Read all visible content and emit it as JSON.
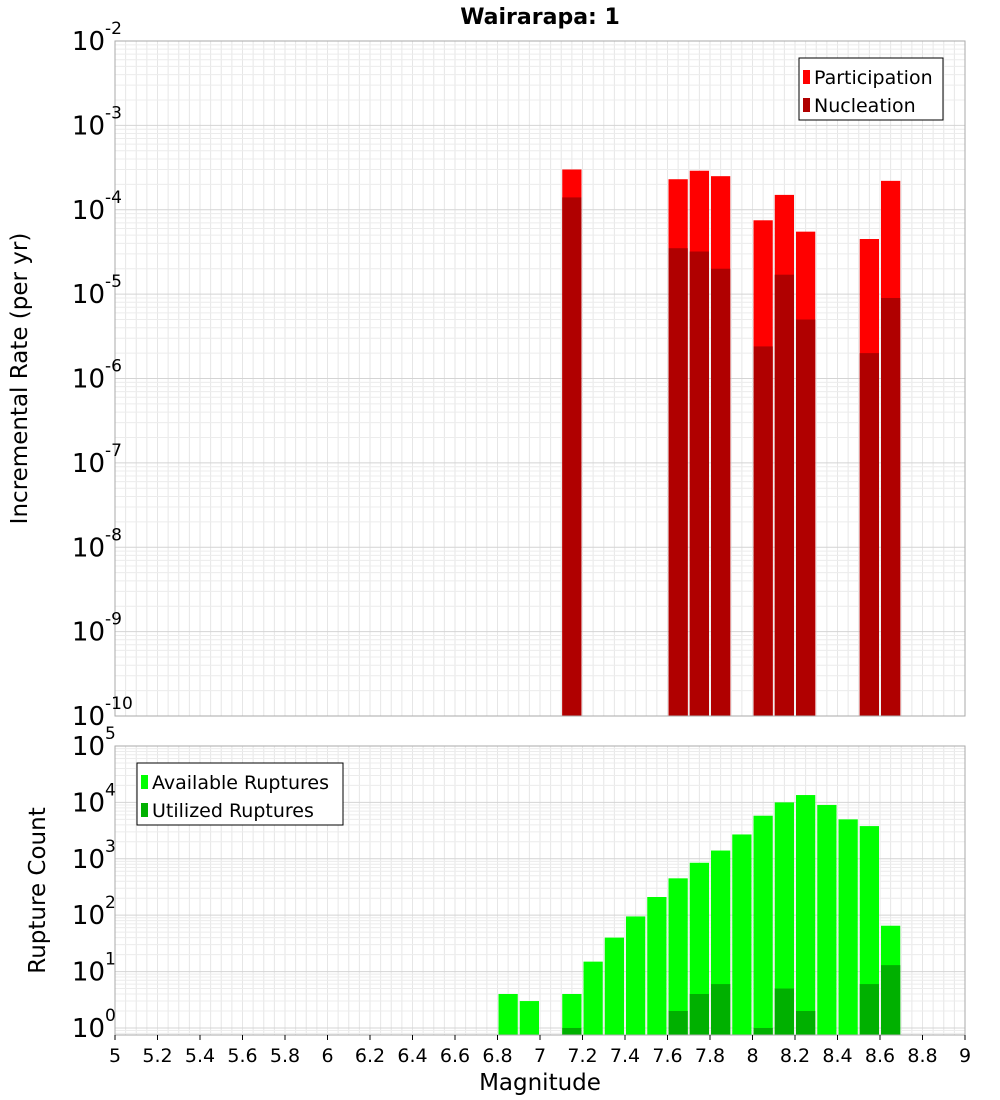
{
  "chart_data": [
    {
      "type": "bar",
      "title": "Wairarapa: 1",
      "xlabel": "",
      "ylabel": "Incremental Rate (per yr)",
      "y_scale": "log",
      "ylim": [
        1e-10,
        0.01
      ],
      "xlim": [
        5,
        9
      ],
      "bin_width": 0.1,
      "grid": true,
      "legend_position": "top-right",
      "legend": [
        "Participation",
        "Nucleation"
      ],
      "series": [
        {
          "name": "Participation",
          "color": "#ff0000",
          "x": [
            7.15,
            7.65,
            7.75,
            7.85,
            8.05,
            8.15,
            8.25,
            8.55,
            8.65
          ],
          "values": [
            0.0003,
            0.00023,
            0.00029,
            0.00025,
            7.5e-05,
            0.00015,
            5.5e-05,
            4.5e-05,
            0.00022
          ]
        },
        {
          "name": "Nucleation",
          "color": "#b00000",
          "x": [
            7.15,
            7.65,
            7.75,
            7.85,
            8.05,
            8.15,
            8.25,
            8.55,
            8.65
          ],
          "values": [
            0.00014,
            3.5e-05,
            3.2e-05,
            2e-05,
            2.4e-06,
            1.7e-05,
            5e-06,
            2e-06,
            9e-06
          ]
        }
      ]
    },
    {
      "type": "bar",
      "title": "",
      "xlabel": "Magnitude",
      "ylabel": "Rupture Count",
      "y_scale": "log",
      "ylim": [
        0.75,
        100000
      ],
      "xlim": [
        5,
        9
      ],
      "bin_width": 0.1,
      "grid": true,
      "legend_position": "top-left",
      "legend": [
        "Available Ruptures",
        "Utilized Ruptures"
      ],
      "x_ticks": [
        "5",
        "5.2",
        "5.4",
        "5.6",
        "5.8",
        "6",
        "6.2",
        "6.4",
        "6.6",
        "6.8",
        "7",
        "7.2",
        "7.4",
        "7.6",
        "7.8",
        "8",
        "8.2",
        "8.4",
        "8.6",
        "8.8",
        "9"
      ],
      "series": [
        {
          "name": "Available Ruptures",
          "color": "#00ff00",
          "x": [
            6.85,
            6.95,
            7.15,
            7.25,
            7.35,
            7.45,
            7.55,
            7.65,
            7.75,
            7.85,
            7.95,
            8.05,
            8.15,
            8.25,
            8.35,
            8.45,
            8.55,
            8.65
          ],
          "values": [
            4,
            3,
            4,
            15,
            40,
            95,
            210,
            450,
            850,
            1400,
            2700,
            5800,
            10000,
            13500,
            9000,
            5000,
            3800,
            65
          ]
        },
        {
          "name": "Utilized Ruptures",
          "color": "#00b000",
          "x": [
            7.15,
            7.65,
            7.75,
            7.85,
            8.05,
            8.15,
            8.25,
            8.55,
            8.65
          ],
          "values": [
            1,
            2,
            4,
            6,
            1,
            5,
            2,
            6,
            13
          ]
        }
      ]
    }
  ]
}
